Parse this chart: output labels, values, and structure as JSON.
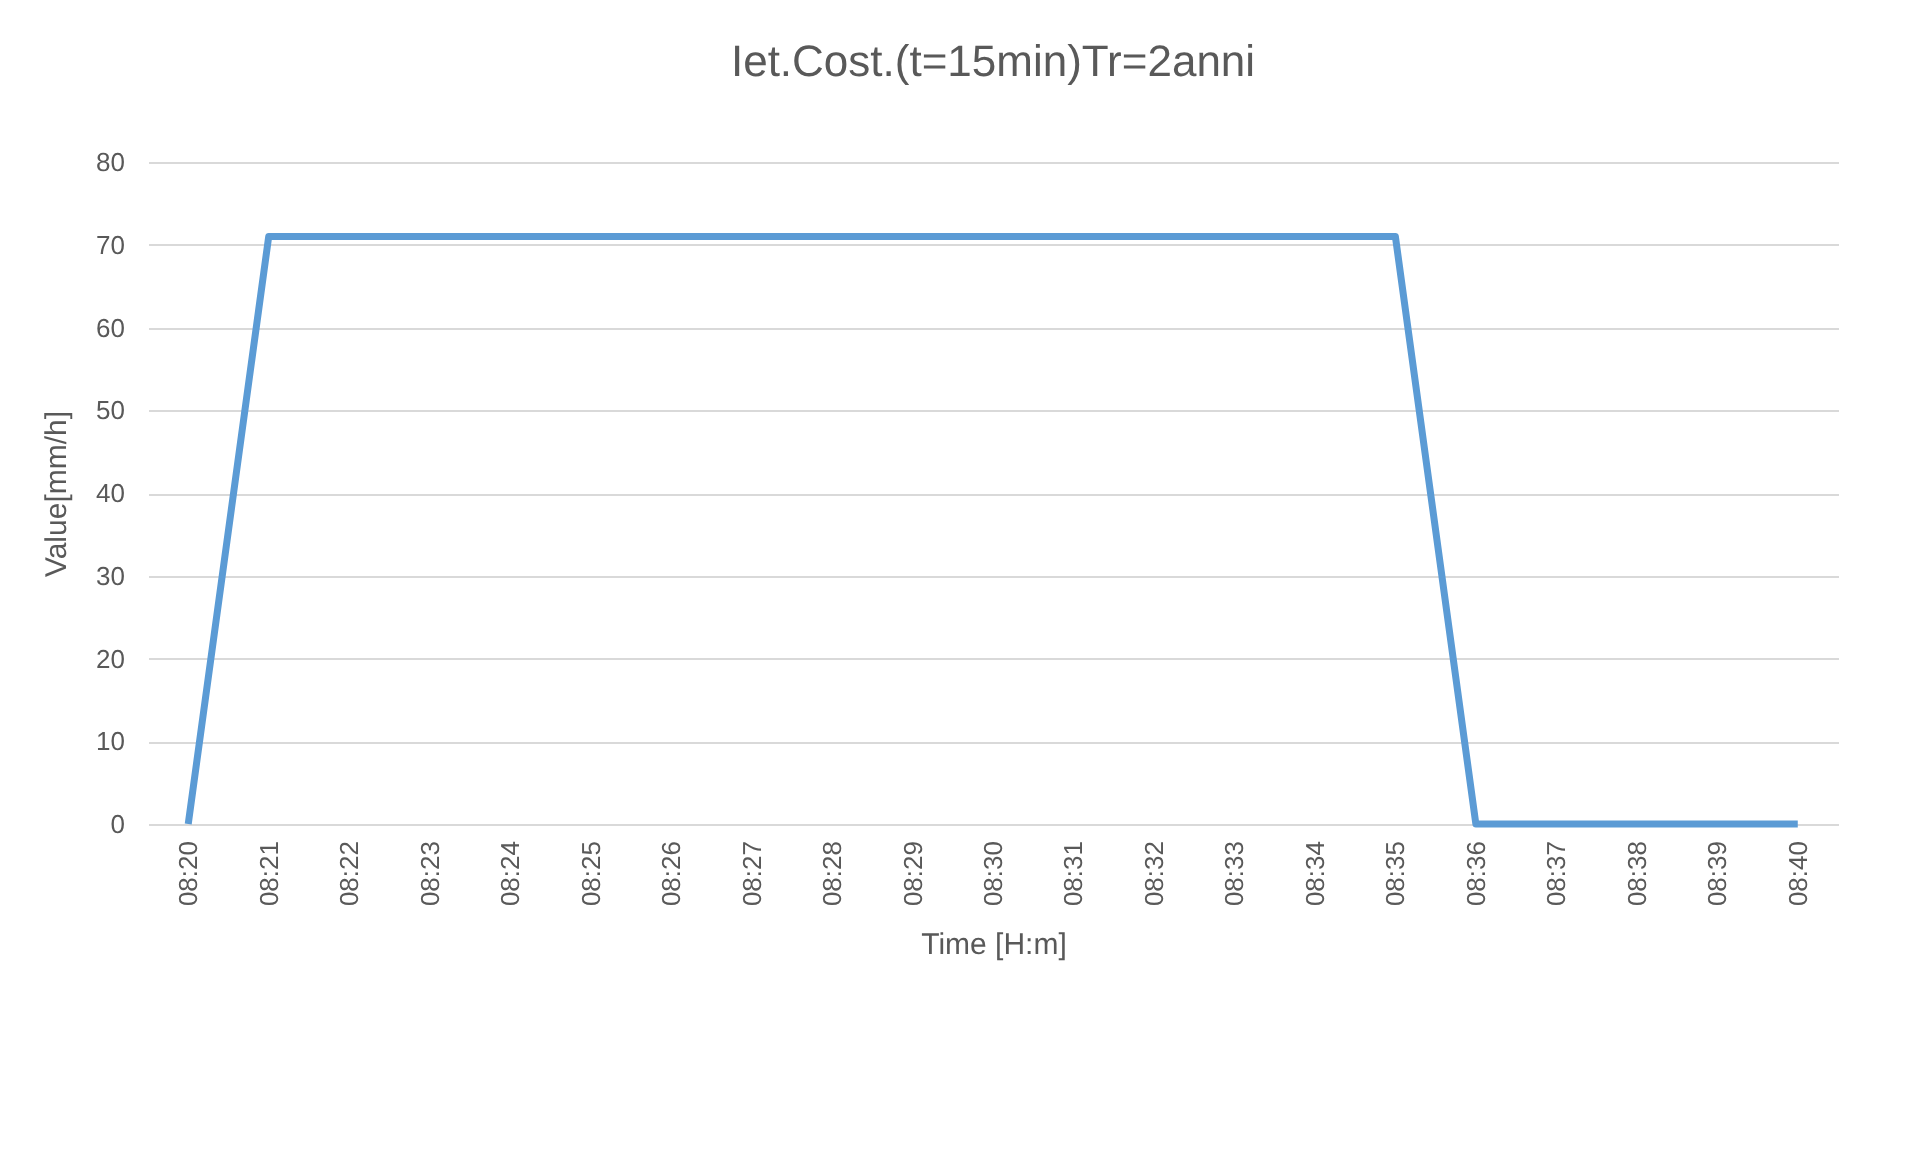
{
  "chart_data": {
    "type": "line",
    "title": "Iet.Cost.(t=15min)Tr=2anni",
    "xlabel": "Time [H:m]",
    "ylabel": "Value[mm/h]",
    "categories": [
      "08:20",
      "08:21",
      "08:22",
      "08:23",
      "08:24",
      "08:25",
      "08:26",
      "08:27",
      "08:28",
      "08:29",
      "08:30",
      "08:31",
      "08:32",
      "08:33",
      "08:34",
      "08:35",
      "08:36",
      "08:37",
      "08:38",
      "08:39",
      "08:40"
    ],
    "series": [
      {
        "color": "#5b9bd5",
        "values": [
          0,
          71,
          71,
          71,
          71,
          71,
          71,
          71,
          71,
          71,
          71,
          71,
          71,
          71,
          71,
          71,
          0,
          0,
          0,
          0,
          0
        ]
      }
    ],
    "ylim": [
      0,
      80
    ],
    "yticks": [
      0,
      10,
      20,
      30,
      40,
      50,
      60,
      70,
      80
    ],
    "grid": "y",
    "legend": false,
    "marker": "none",
    "line_style": "solid"
  }
}
